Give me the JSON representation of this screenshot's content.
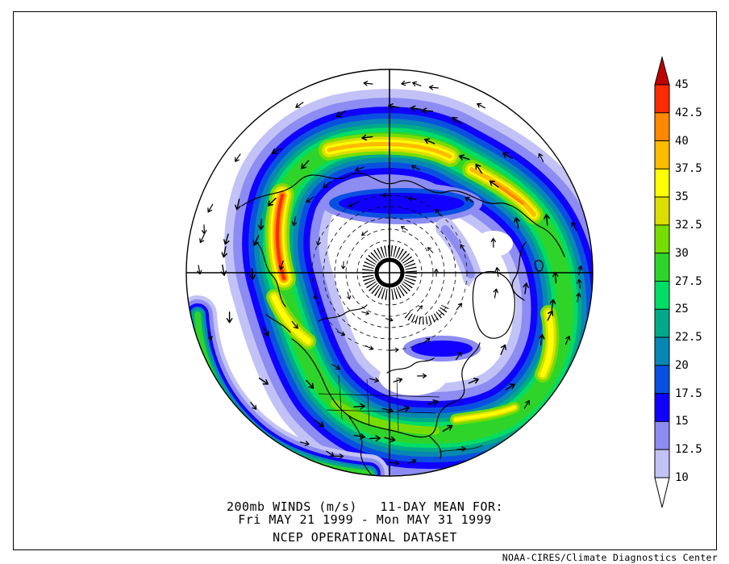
{
  "titles": {
    "line1": "200mb WINDS (m/s)   11-DAY MEAN FOR:",
    "line2": "Fri MAY 21 1999 - Mon MAY 31 1999",
    "line3": "NCEP OPERATIONAL DATASET"
  },
  "credit": "NOAA-CIRES/Climate Diagnostics Center",
  "colorbar": {
    "labels": [
      "45",
      "42.5",
      "40",
      "37.5",
      "35",
      "32.5",
      "30",
      "27.5",
      "25",
      "22.5",
      "20",
      "17.5",
      "15",
      "12.5",
      "10"
    ],
    "segment_colors_top_to_bottom": [
      "#FF2A00",
      "#FF8800",
      "#FFBB00",
      "#FFFF00",
      "#DDDD00",
      "#77DD00",
      "#2FD42B",
      "#00DD66",
      "#00AA88",
      "#0886B4",
      "#0A50E0",
      "#1000FF",
      "#8C8CF2",
      "#C2C2F7"
    ],
    "over_arrow_color": "#C00000",
    "under_arrow_color": "#FFFFFF"
  },
  "chart_data": {
    "type": "heatmap",
    "title": "200mb WINDS (m/s)   11-DAY MEAN FOR:",
    "subtitle": "Fri MAY 21 1999 - Mon MAY 31 1999",
    "dataset": "NCEP OPERATIONAL DATASET",
    "credit": "NOAA-CIRES/Climate Diagnostics Center",
    "variable": "200mb wind speed, 11-day mean",
    "units": "m/s",
    "projection": "Northern Hemisphere polar stereographic (pole at center, North America at bottom)",
    "overlays": [
      "wind vector arrows",
      "coastlines and state/country borders",
      "dashed contours around polar center",
      "center crosshair lines"
    ],
    "colorbar_levels": [
      10,
      12.5,
      15,
      17.5,
      20,
      22.5,
      25,
      27.5,
      30,
      32.5,
      35,
      37.5,
      40,
      42.5,
      45
    ],
    "colorbar_colors_low_to_high": [
      "#C2C2F7",
      "#8C8CF2",
      "#1000FF",
      "#0A50E0",
      "#0886B4",
      "#00AA88",
      "#00DD66",
      "#2FD42B",
      "#77DD00",
      "#DDDD00",
      "#FFFF00",
      "#FFBB00",
      "#FF8800",
      "#FF2A00"
    ],
    "below_min_color": "#FFFFFF",
    "above_max_color": "#C00000",
    "pattern": "ring-shaped jet stream of high wind speed circling the pole; calm (<10 m/s) white region at map center",
    "notable_maxima_mps": [
      {
        "location": "northwest Pacific / east Asia (left of map)",
        "value": "42.5-45+ (red core)"
      },
      {
        "location": "northern Eurasia band (top of map)",
        "value": "37.5-40 (orange)"
      },
      {
        "location": "band descending upper-right",
        "value": "37.5-40 (orange)"
      },
      {
        "location": "north Atlantic (right of map)",
        "value": "35-37.5 (yellow)"
      },
      {
        "location": "southern United States / western Atlantic (bottom)",
        "value": "30-35 (green-yellow)"
      }
    ],
    "polar_minimum": "< 10 m/s near the pole"
  }
}
